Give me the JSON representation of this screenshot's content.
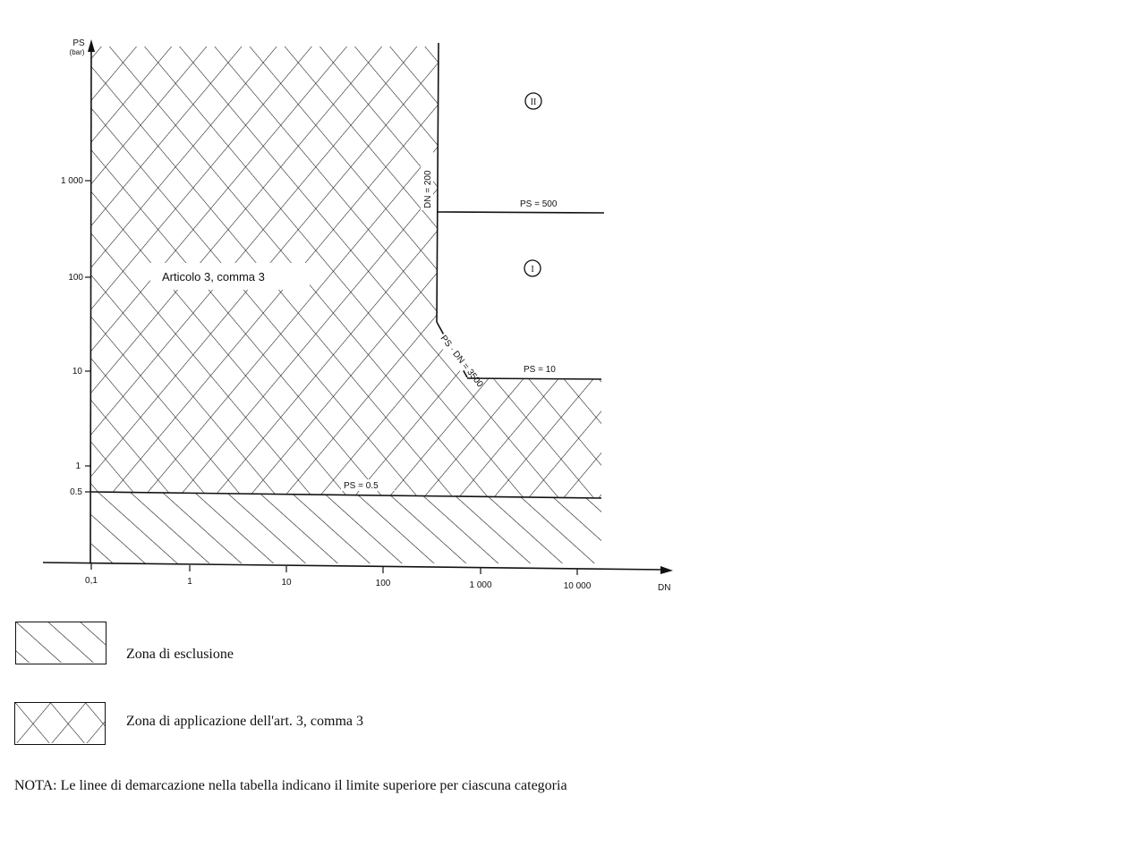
{
  "chart_data": {
    "type": "area",
    "title": "",
    "xlabel": "DN",
    "ylabel": "PS",
    "yunit": "(bar)",
    "xscale": "log",
    "yscale": "log",
    "xticks": [
      "0,1",
      "1",
      "10",
      "100",
      "1 000",
      "10 000"
    ],
    "yticks": [
      "0.5",
      "1",
      "10",
      "100",
      "1 000"
    ],
    "regions": [
      {
        "name": "Articolo 3, comma 3",
        "pattern": "cross-hatch",
        "bounds": "PS ≥ 0.5, DN ≤ 200 and PS·DN ≤ 3500 (for PS ≤ 10)"
      },
      {
        "name": "Zona di esclusione",
        "pattern": "single-hatch",
        "bounds": "PS ≤ 0.5"
      }
    ],
    "categories": [
      "I",
      "II"
    ],
    "demarcation_lines": [
      {
        "label": "DN = 200",
        "orientation": "vertical"
      },
      {
        "label": "PS = 500",
        "orientation": "horizontal"
      },
      {
        "label": "PS = 10",
        "orientation": "horizontal"
      },
      {
        "label": "PS · DN = 3500",
        "orientation": "diagonal"
      },
      {
        "label": "PS = 0.5",
        "orientation": "horizontal"
      }
    ]
  },
  "legend": [
    {
      "label": "Zona di esclusione"
    },
    {
      "label": "Zona di applicazione dell'art. 3, comma 3"
    }
  ],
  "note": "NOTA: Le linee di demarcazione nella tabella indicano il limite superiore per ciascuna categoria"
}
